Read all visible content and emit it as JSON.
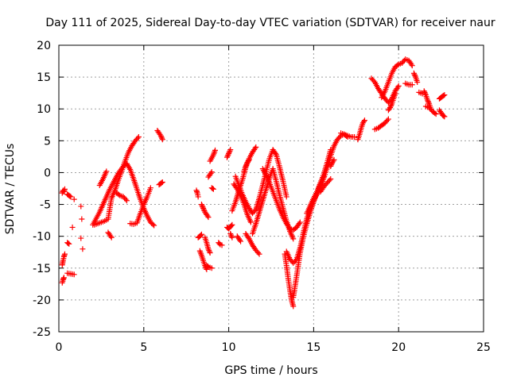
{
  "chart_data": {
    "type": "scatter",
    "title": "Day 111 of 2025, Sidereal Day-to-day VTEC variation (SDTVAR) for receiver naur",
    "xlabel": "GPS time / hours",
    "ylabel": "SDTVAR / TECUs",
    "xlim": [
      0,
      25
    ],
    "ylim": [
      -25,
      20
    ],
    "xticks": [
      0,
      5,
      10,
      15,
      20,
      25
    ],
    "yticks": [
      -25,
      -20,
      -15,
      -10,
      -5,
      0,
      5,
      10,
      15,
      20
    ],
    "xtick_labels": [
      "0",
      "5",
      "10",
      "15",
      "20",
      "25"
    ],
    "ytick_labels": [
      "-25",
      "-20",
      "-15",
      "-10",
      "-5",
      "0",
      "5",
      "10",
      "15",
      "20"
    ],
    "grid": true,
    "marker": "+",
    "color": "#ff0000",
    "tracks": [
      {
        "x": [
          0.2,
          0.25,
          0.3,
          0.35
        ],
        "y": [
          -3.2,
          -2.8,
          -3.0,
          -2.6
        ]
      },
      {
        "x": [
          0.2,
          0.25,
          0.3,
          0.35
        ],
        "y": [
          -14.5,
          -13.8,
          -13.2,
          -12.8
        ]
      },
      {
        "x": [
          0.2,
          0.25,
          0.3
        ],
        "y": [
          -17.3,
          -16.8,
          -16.5
        ]
      },
      {
        "x": [
          0.5,
          0.6,
          0.7
        ],
        "y": [
          -3.4,
          -3.6,
          -3.8
        ]
      },
      {
        "x": [
          0.5,
          0.6
        ],
        "y": [
          -11.0,
          -11.2
        ]
      },
      {
        "x": [
          0.5,
          0.7,
          0.9
        ],
        "y": [
          -15.8,
          -15.9,
          -16.0
        ]
      },
      {
        "x": [
          0.8
        ],
        "y": [
          -8.6
        ]
      },
      {
        "x": [
          0.9
        ],
        "y": [
          -4.2
        ]
      },
      {
        "x": [
          1.3
        ],
        "y": [
          -5.3
        ]
      },
      {
        "x": [
          1.35
        ],
        "y": [
          -7.3
        ]
      },
      {
        "x": [
          1.3
        ],
        "y": [
          -10.3
        ]
      },
      {
        "x": [
          1.4
        ],
        "y": [
          -12.0
        ]
      },
      {
        "x": [
          2.0,
          2.2,
          2.4,
          2.6,
          2.8,
          3.0,
          3.2,
          3.4,
          3.6,
          3.8,
          4.0,
          4.2,
          4.4,
          4.6,
          4.8,
          5.0,
          5.2,
          5.4,
          5.6
        ],
        "y": [
          -8.2,
          -7.2,
          -6.2,
          -5.0,
          -3.8,
          -2.6,
          -1.6,
          -0.6,
          0.3,
          1.0,
          1.4,
          0.5,
          -1.0,
          -2.6,
          -4.2,
          -5.6,
          -6.8,
          -7.8,
          -8.3
        ]
      },
      {
        "x": [
          2.1,
          2.3,
          2.5,
          2.7,
          2.9,
          3.1,
          3.3,
          3.5,
          3.7,
          3.9,
          4.1,
          4.3,
          4.5,
          4.7
        ],
        "y": [
          -8.2,
          -8.0,
          -7.8,
          -7.6,
          -7.3,
          -4.0,
          -2.8,
          -1.2,
          0.2,
          1.8,
          3.2,
          4.2,
          5.0,
          5.6
        ]
      },
      {
        "x": [
          2.4,
          2.6,
          2.8
        ],
        "y": [
          -2.0,
          -1.0,
          0.2
        ]
      },
      {
        "x": [
          2.9,
          3.0,
          3.1
        ],
        "y": [
          -9.4,
          -9.8,
          -10.2
        ]
      },
      {
        "x": [
          3.4,
          3.6,
          3.8,
          4.0
        ],
        "y": [
          -3.2,
          -3.6,
          -3.8,
          -4.4
        ]
      },
      {
        "x": [
          4.2,
          4.4,
          4.6,
          4.8,
          5.0,
          5.2,
          5.4
        ],
        "y": [
          -8.0,
          -8.1,
          -7.9,
          -6.4,
          -5.0,
          -3.8,
          -2.4
        ]
      },
      {
        "x": [
          5.8,
          5.9,
          6.0,
          6.1
        ],
        "y": [
          6.6,
          6.2,
          5.8,
          5.2
        ]
      },
      {
        "x": [
          5.9,
          6.0,
          6.1
        ],
        "y": [
          -1.9,
          -1.7,
          -1.5
        ]
      },
      {
        "x": [
          8.1,
          8.15,
          8.2
        ],
        "y": [
          -2.8,
          -3.2,
          -3.8
        ]
      },
      {
        "x": [
          8.2,
          8.3,
          8.4
        ],
        "y": [
          -10.2,
          -10.0,
          -9.7
        ]
      },
      {
        "x": [
          8.3,
          8.4,
          8.5,
          8.6,
          8.7
        ],
        "y": [
          -12.3,
          -13.0,
          -13.8,
          -14.6,
          -15.2
        ]
      },
      {
        "x": [
          8.4,
          8.5,
          8.6,
          8.7,
          8.8
        ],
        "y": [
          -5.0,
          -5.6,
          -6.2,
          -6.6,
          -7.0
        ]
      },
      {
        "x": [
          8.6,
          8.7,
          8.8,
          8.9
        ],
        "y": [
          -10.2,
          -11.0,
          -12.0,
          -12.6
        ]
      },
      {
        "x": [
          8.7,
          8.8,
          8.9,
          9.0
        ],
        "y": [
          -14.6,
          -14.8,
          -14.9,
          -15.0
        ]
      },
      {
        "x": [
          8.8,
          8.9,
          9.0
        ],
        "y": [
          -0.7,
          -0.3,
          0.1
        ]
      },
      {
        "x": [
          9.0,
          9.1
        ],
        "y": [
          -2.4,
          -2.6
        ]
      },
      {
        "x": [
          8.9,
          9.0,
          9.1,
          9.2
        ],
        "y": [
          1.8,
          2.3,
          2.8,
          3.5
        ]
      },
      {
        "x": [
          9.4,
          9.5,
          9.6
        ],
        "y": [
          -11.0,
          -11.3,
          -11.4
        ]
      },
      {
        "x": [
          9.9,
          10.0,
          10.1,
          10.2
        ],
        "y": [
          -8.6,
          -8.8,
          -8.5,
          -8.2
        ]
      },
      {
        "x": [
          9.9,
          10.0,
          10.1
        ],
        "y": [
          2.4,
          3.0,
          3.6
        ]
      },
      {
        "x": [
          10.1,
          10.2
        ],
        "y": [
          -9.6,
          -10.2
        ]
      },
      {
        "x": [
          10.2,
          10.4,
          10.6,
          10.8,
          11.0,
          11.2,
          11.4,
          11.6
        ],
        "y": [
          -6.0,
          -4.6,
          -2.8,
          -1.2,
          0.8,
          2.2,
          3.2,
          4.0
        ]
      },
      {
        "x": [
          10.3,
          10.5,
          10.7,
          10.9,
          11.1,
          11.3
        ],
        "y": [
          -1.8,
          -2.6,
          -3.6,
          -5.0,
          -6.6,
          -7.8
        ]
      },
      {
        "x": [
          10.4,
          10.6,
          10.8,
          11.0,
          11.2,
          11.4,
          11.6,
          11.8,
          12.0,
          12.2,
          12.4,
          12.6,
          12.8,
          13.0,
          13.2,
          13.4
        ],
        "y": [
          -0.6,
          -2.0,
          -3.4,
          -4.6,
          -5.6,
          -6.4,
          -5.8,
          -4.0,
          -2.0,
          0.2,
          2.2,
          3.6,
          2.8,
          0.8,
          -1.4,
          -3.8
        ]
      },
      {
        "x": [
          10.5,
          10.6,
          10.7
        ],
        "y": [
          -10.0,
          -10.4,
          -10.8
        ]
      },
      {
        "x": [
          10.9,
          11.0,
          11.1,
          11.2
        ],
        "y": [
          0.2,
          1.0,
          1.6,
          2.0
        ]
      },
      {
        "x": [
          11.0,
          11.2,
          11.4,
          11.6,
          11.8
        ],
        "y": [
          -9.6,
          -10.4,
          -11.4,
          -12.2,
          -12.8
        ]
      },
      {
        "x": [
          11.4,
          11.6,
          11.8,
          12.0,
          12.2,
          12.4,
          12.6,
          12.8,
          13.0,
          13.2,
          13.4,
          13.6,
          13.8
        ],
        "y": [
          -9.6,
          -8.0,
          -6.2,
          -4.4,
          -2.6,
          -0.8,
          0.6,
          -1.4,
          -3.6,
          -5.6,
          -7.6,
          -9.2,
          -10.4
        ]
      },
      {
        "x": [
          12.0,
          12.2,
          12.4,
          12.6,
          12.8,
          13.0,
          13.2,
          13.4,
          13.6,
          13.8,
          14.0,
          14.2
        ],
        "y": [
          0.6,
          -0.4,
          -1.6,
          -3.0,
          -4.4,
          -5.8,
          -7.0,
          -8.0,
          -8.8,
          -9.0,
          -8.6,
          -7.8
        ]
      },
      {
        "x": [
          13.3,
          13.4,
          13.5,
          13.6,
          13.7,
          13.8
        ],
        "y": [
          -12.8,
          -14.6,
          -16.6,
          -18.4,
          -20.0,
          -21.0
        ]
      },
      {
        "x": [
          13.4,
          13.6,
          13.8,
          14.0,
          14.2,
          14.4,
          14.6,
          14.8,
          15.0,
          15.2,
          15.4,
          15.6,
          15.8,
          16.0,
          16.2,
          16.4,
          16.6,
          16.8,
          17.0
        ],
        "y": [
          -12.4,
          -13.6,
          -14.2,
          -13.6,
          -11.8,
          -9.4,
          -7.2,
          -5.6,
          -4.4,
          -3.4,
          -2.2,
          -0.8,
          0.8,
          2.6,
          4.2,
          5.2,
          5.8,
          6.0,
          5.6
        ]
      },
      {
        "x": [
          13.8,
          14.0,
          14.2,
          14.4,
          14.6,
          14.8,
          15.0,
          15.2,
          15.4,
          15.6,
          15.8,
          16.0
        ],
        "y": [
          -19.6,
          -16.2,
          -12.6,
          -10.0,
          -8.0,
          -6.2,
          -4.6,
          -3.0,
          -1.6,
          -0.2,
          1.6,
          3.6
        ]
      },
      {
        "x": [
          14.6,
          14.8,
          15.0,
          15.2,
          15.4,
          15.6
        ],
        "y": [
          -6.4,
          -5.2,
          -4.0,
          -3.0,
          -1.8,
          -0.6
        ]
      },
      {
        "x": [
          15.4,
          15.6,
          15.8,
          16.0
        ],
        "y": [
          -3.0,
          -2.2,
          -1.6,
          -1.0
        ]
      },
      {
        "x": [
          16.0,
          16.1,
          16.2
        ],
        "y": [
          1.0,
          1.6,
          2.0
        ]
      },
      {
        "x": [
          16.6,
          16.8,
          17.0,
          17.2,
          17.4
        ],
        "y": [
          6.2,
          6.0,
          5.8,
          5.6,
          5.6
        ]
      },
      {
        "x": [
          17.6,
          17.7,
          17.8,
          17.9,
          18.0
        ],
        "y": [
          5.2,
          6.0,
          7.0,
          7.8,
          8.2
        ]
      },
      {
        "x": [
          18.6,
          18.8,
          19.0,
          19.2,
          19.4
        ],
        "y": [
          6.8,
          7.0,
          7.4,
          7.8,
          8.4
        ]
      },
      {
        "x": [
          18.4,
          18.6,
          18.8,
          19.0,
          19.2,
          19.4,
          19.6,
          19.8,
          20.0
        ],
        "y": [
          14.8,
          14.2,
          13.2,
          12.4,
          11.6,
          11.0,
          11.6,
          12.8,
          13.6
        ]
      },
      {
        "x": [
          19.0,
          19.2,
          19.4,
          19.6,
          19.8,
          20.0,
          20.2
        ],
        "y": [
          11.8,
          12.8,
          14.2,
          15.6,
          16.6,
          17.0,
          17.2
        ]
      },
      {
        "x": [
          19.4,
          19.5,
          19.6,
          19.7,
          19.8
        ],
        "y": [
          9.8,
          10.2,
          10.8,
          11.6,
          12.4
        ]
      },
      {
        "x": [
          20.2,
          20.4,
          20.6,
          20.8
        ],
        "y": [
          17.2,
          17.8,
          17.6,
          16.8
        ]
      },
      {
        "x": [
          20.4,
          20.6,
          20.8
        ],
        "y": [
          14.0,
          13.8,
          13.8
        ]
      },
      {
        "x": [
          20.9,
          21.0,
          21.1
        ],
        "y": [
          15.6,
          15.0,
          14.2
        ]
      },
      {
        "x": [
          21.2,
          21.4
        ],
        "y": [
          12.6,
          12.4
        ]
      },
      {
        "x": [
          21.5,
          21.6,
          21.7,
          21.8,
          21.9
        ],
        "y": [
          12.8,
          12.2,
          11.4,
          10.8,
          10.0
        ]
      },
      {
        "x": [
          21.6,
          21.8,
          22.0,
          22.2
        ],
        "y": [
          10.4,
          10.2,
          9.6,
          9.2
        ]
      },
      {
        "x": [
          22.4,
          22.5,
          22.6,
          22.7
        ],
        "y": [
          11.6,
          11.8,
          12.0,
          12.2
        ]
      },
      {
        "x": [
          22.4,
          22.5,
          22.6,
          22.7
        ],
        "y": [
          9.8,
          9.4,
          9.0,
          8.8
        ]
      }
    ]
  }
}
